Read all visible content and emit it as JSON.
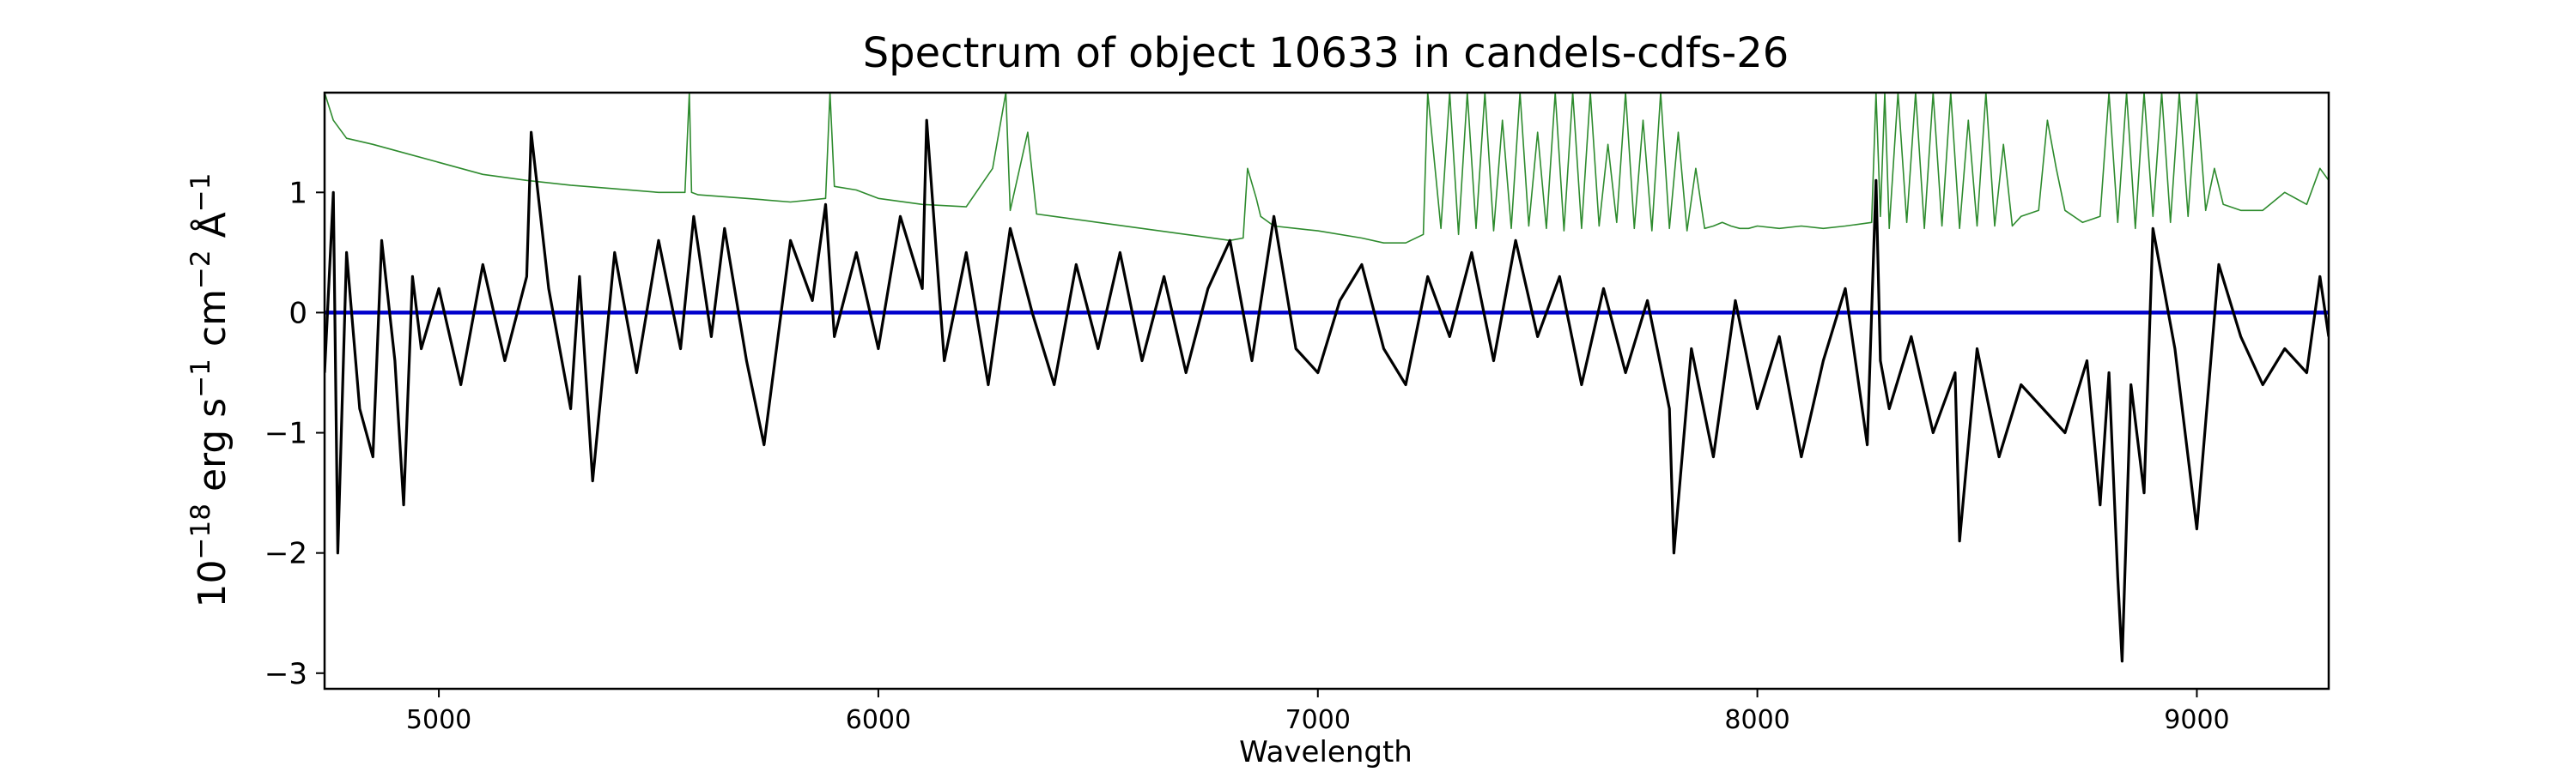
{
  "chart_data": {
    "type": "line",
    "title": "Spectrum of object 10633 in candels-cdfs-26",
    "xlabel": "Wavelength",
    "ylabel_base": "10",
    "ylabel_exp": "−18",
    "ylabel_unit_1": " erg s",
    "ylabel_unit_1_exp": "−1",
    "ylabel_unit_2": " cm",
    "ylabel_unit_2_exp": "−2",
    "ylabel_unit_3": " Å",
    "ylabel_unit_3_exp": "−1",
    "xlim": [
      4740,
      9300
    ],
    "ylim": [
      -3.13,
      1.83
    ],
    "xticks": [
      5000,
      6000,
      7000,
      8000,
      9000
    ],
    "xtick_labels": [
      "5000",
      "6000",
      "7000",
      "8000",
      "9000"
    ],
    "yticks": [
      -3,
      -2,
      -1,
      0,
      1
    ],
    "ytick_labels": [
      "−3",
      "−2",
      "−1",
      "0",
      "1"
    ],
    "grid": false,
    "legend": false,
    "colors": {
      "flux": "#000000",
      "noise": "#2e8b2e",
      "zero": "#0000cc"
    },
    "series": [
      {
        "id": "zero",
        "x": [
          4740,
          9300
        ],
        "y": [
          0,
          0
        ]
      },
      {
        "id": "noise",
        "x": [
          4740,
          4760,
          4790,
          4850,
          4900,
          5000,
          5100,
          5200,
          5300,
          5400,
          5500,
          5560,
          5570,
          5575,
          5590,
          5700,
          5800,
          5880,
          5890,
          5900,
          5950,
          6000,
          6100,
          6200,
          6260,
          6290,
          6300,
          6340,
          6360,
          6400,
          6500,
          6600,
          6700,
          6800,
          6830,
          6840,
          6860,
          6870,
          6900,
          6950,
          7000,
          7100,
          7150,
          7200,
          7240,
          7250,
          7280,
          7300,
          7320,
          7340,
          7360,
          7380,
          7400,
          7420,
          7440,
          7460,
          7480,
          7500,
          7520,
          7540,
          7560,
          7580,
          7600,
          7620,
          7640,
          7660,
          7680,
          7700,
          7720,
          7740,
          7760,
          7780,
          7800,
          7820,
          7840,
          7860,
          7880,
          7900,
          7920,
          7940,
          7960,
          7980,
          8000,
          8050,
          8100,
          8150,
          8200,
          8260,
          8270,
          8280,
          8290,
          8300,
          8320,
          8340,
          8360,
          8380,
          8400,
          8420,
          8440,
          8460,
          8480,
          8500,
          8520,
          8540,
          8560,
          8580,
          8600,
          8640,
          8660,
          8680,
          8700,
          8740,
          8780,
          8800,
          8820,
          8840,
          8860,
          8880,
          8900,
          8920,
          8940,
          8960,
          8980,
          9000,
          9020,
          9040,
          9060,
          9100,
          9150,
          9200,
          9250,
          9280,
          9300
        ],
        "y": [
          1.83,
          1.6,
          1.45,
          1.4,
          1.35,
          1.25,
          1.15,
          1.1,
          1.06,
          1.03,
          1.0,
          1.0,
          1.83,
          1.0,
          0.98,
          0.95,
          0.92,
          0.95,
          1.83,
          1.05,
          1.02,
          0.95,
          0.9,
          0.88,
          1.2,
          1.83,
          0.85,
          1.5,
          0.82,
          0.8,
          0.75,
          0.7,
          0.65,
          0.6,
          0.62,
          1.2,
          0.95,
          0.8,
          0.72,
          0.7,
          0.68,
          0.62,
          0.58,
          0.58,
          0.65,
          1.83,
          0.7,
          1.83,
          0.65,
          1.83,
          0.7,
          1.83,
          0.68,
          1.6,
          0.7,
          1.83,
          0.72,
          1.5,
          0.7,
          1.83,
          0.68,
          1.83,
          0.7,
          1.83,
          0.72,
          1.4,
          0.75,
          1.83,
          0.7,
          1.6,
          0.68,
          1.83,
          0.7,
          1.5,
          0.68,
          1.2,
          0.7,
          0.72,
          0.75,
          0.72,
          0.7,
          0.7,
          0.72,
          0.7,
          0.72,
          0.7,
          0.72,
          0.75,
          1.83,
          0.8,
          1.83,
          0.7,
          1.83,
          0.75,
          1.83,
          0.7,
          1.83,
          0.72,
          1.83,
          0.7,
          1.6,
          0.72,
          1.83,
          0.72,
          1.4,
          0.72,
          0.8,
          0.85,
          1.6,
          1.2,
          0.85,
          0.75,
          0.8,
          1.83,
          0.75,
          1.83,
          0.7,
          1.83,
          0.8,
          1.83,
          0.75,
          1.83,
          0.8,
          1.83,
          0.85,
          1.2,
          0.9,
          0.85,
          0.85,
          1.0,
          0.9,
          1.2,
          1.1
        ]
      },
      {
        "id": "flux",
        "x": [
          4740,
          4760,
          4770,
          4790,
          4820,
          4850,
          4870,
          4900,
          4920,
          4940,
          4960,
          5000,
          5050,
          5100,
          5150,
          5200,
          5210,
          5250,
          5300,
          5320,
          5350,
          5400,
          5450,
          5500,
          5550,
          5580,
          5620,
          5650,
          5700,
          5740,
          5800,
          5850,
          5880,
          5900,
          5950,
          6000,
          6050,
          6100,
          6110,
          6150,
          6200,
          6250,
          6300,
          6350,
          6400,
          6450,
          6500,
          6550,
          6600,
          6650,
          6700,
          6750,
          6800,
          6850,
          6900,
          6950,
          7000,
          7050,
          7100,
          7150,
          7200,
          7250,
          7300,
          7350,
          7400,
          7450,
          7500,
          7550,
          7600,
          7650,
          7700,
          7750,
          7800,
          7810,
          7850,
          7900,
          7950,
          8000,
          8050,
          8100,
          8150,
          8200,
          8250,
          8270,
          8280,
          8300,
          8350,
          8400,
          8450,
          8460,
          8500,
          8550,
          8600,
          8650,
          8700,
          8750,
          8780,
          8800,
          8820,
          8830,
          8850,
          8880,
          8900,
          8950,
          9000,
          9050,
          9100,
          9150,
          9200,
          9250,
          9280,
          9300
        ],
        "y": [
          -0.5,
          1.0,
          -2.0,
          0.5,
          -0.8,
          -1.2,
          0.6,
          -0.4,
          -1.6,
          0.3,
          -0.3,
          0.2,
          -0.6,
          0.4,
          -0.4,
          0.3,
          1.5,
          0.2,
          -0.8,
          0.3,
          -1.4,
          0.5,
          -0.5,
          0.6,
          -0.3,
          0.8,
          -0.2,
          0.7,
          -0.4,
          -1.1,
          0.6,
          0.1,
          0.9,
          -0.2,
          0.5,
          -0.3,
          0.8,
          0.2,
          1.6,
          -0.4,
          0.5,
          -0.6,
          0.7,
          0.0,
          -0.6,
          0.4,
          -0.3,
          0.5,
          -0.4,
          0.3,
          -0.5,
          0.2,
          0.6,
          -0.4,
          0.8,
          -0.3,
          -0.5,
          0.1,
          0.4,
          -0.3,
          -0.6,
          0.3,
          -0.2,
          0.5,
          -0.4,
          0.6,
          -0.2,
          0.3,
          -0.6,
          0.2,
          -0.5,
          0.1,
          -0.8,
          -2.0,
          -0.3,
          -1.2,
          0.1,
          -0.8,
          -0.2,
          -1.2,
          -0.4,
          0.2,
          -1.1,
          1.1,
          -0.4,
          -0.8,
          -0.2,
          -1.0,
          -0.5,
          -1.9,
          -0.3,
          -1.2,
          -0.6,
          -0.8,
          -1.0,
          -0.4,
          -1.6,
          -0.5,
          -2.2,
          -2.9,
          -0.6,
          -1.5,
          0.7,
          -0.3,
          -1.8,
          0.4,
          -0.2,
          -0.6,
          -0.3,
          -0.5,
          0.3,
          -0.2
        ]
      }
    ]
  }
}
